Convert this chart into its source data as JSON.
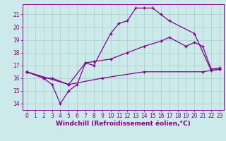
{
  "background_color": "#cceaea",
  "grid_color": "#aacccc",
  "line_color": "#880088",
  "marker": "+",
  "xlabel": "Windchill (Refroidissement éolien,°C)",
  "xlabel_fontsize": 6.5,
  "tick_fontsize": 5.5,
  "xlim": [
    -0.5,
    23.5
  ],
  "ylim": [
    13.5,
    21.8
  ],
  "yticks": [
    14,
    15,
    16,
    17,
    18,
    19,
    20,
    21
  ],
  "xticks": [
    0,
    1,
    2,
    3,
    4,
    5,
    6,
    7,
    8,
    9,
    10,
    11,
    12,
    13,
    14,
    15,
    16,
    17,
    18,
    19,
    20,
    21,
    22,
    23
  ],
  "series1_x": [
    0,
    2,
    3,
    4,
    5,
    6,
    7,
    8,
    10,
    11,
    12,
    13,
    14,
    15,
    16,
    17,
    20,
    22,
    23
  ],
  "series1_y": [
    16.5,
    16.0,
    15.5,
    14.0,
    15.0,
    15.5,
    17.2,
    17.0,
    19.5,
    20.3,
    20.5,
    21.5,
    21.5,
    21.5,
    21.0,
    20.5,
    19.5,
    16.6,
    16.7
  ],
  "series2_x": [
    0,
    2,
    3,
    5,
    7,
    8,
    10,
    12,
    14,
    16,
    17,
    19,
    20,
    21,
    22,
    23
  ],
  "series2_y": [
    16.5,
    16.0,
    16.0,
    15.5,
    17.2,
    17.3,
    17.5,
    18.0,
    18.5,
    18.9,
    19.2,
    18.5,
    18.8,
    18.5,
    16.7,
    16.8
  ],
  "series3_x": [
    0,
    5,
    9,
    14,
    21,
    23
  ],
  "series3_y": [
    16.5,
    15.5,
    16.0,
    16.5,
    16.5,
    16.7
  ]
}
